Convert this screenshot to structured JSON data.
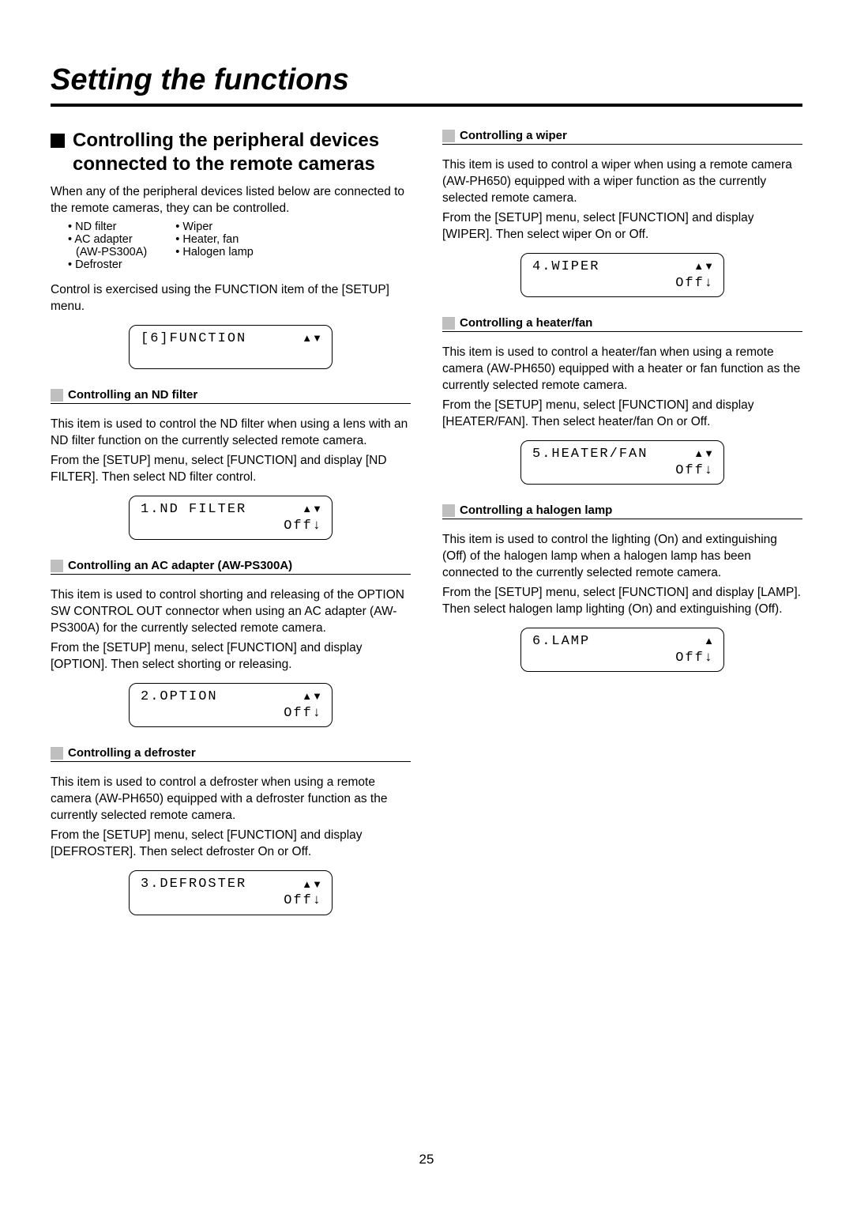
{
  "page": {
    "title": "Setting the functions",
    "page_number": "25"
  },
  "left": {
    "section_title": "Controlling the peripheral devices connected to the remote cameras",
    "intro": "When any of the peripheral devices listed below are connected to the remote cameras, they can be controlled.",
    "devices_col1": [
      "ND filter",
      "AC adapter",
      "(AW-PS300A)",
      "Defroster"
    ],
    "devices_col2": [
      "Wiper",
      "Heater, fan",
      "Halogen lamp"
    ],
    "control_note": "Control is exercised using the FUNCTION item of the [SETUP] menu.",
    "lcd_function_line1": "[6]FUNCTION",
    "lcd_function_arrow": "▲▼",
    "sections": [
      {
        "heading": "Controlling an ND filter",
        "body1": "This item is used to control the ND filter when using a lens with an ND filter function on the currently selected remote camera.",
        "body2": "From the [SETUP] menu, select [FUNCTION] and display [ND FILTER]. Then select ND filter control.",
        "lcd_line1": "1.ND FILTER",
        "lcd_arrow1": "▲▼",
        "lcd_line2": "Off",
        "lcd_arrow2": "↓"
      },
      {
        "heading": "Controlling an AC adapter (AW-PS300A)",
        "body1": "This item is used to control shorting and releasing of the OPTION SW CONTROL OUT connector when using an AC adapter (AW-PS300A) for the currently selected remote camera.",
        "body2": "From the [SETUP] menu, select [FUNCTION] and display [OPTION]. Then select shorting or releasing.",
        "lcd_line1": "2.OPTION",
        "lcd_arrow1": "▲▼",
        "lcd_line2": "Off",
        "lcd_arrow2": "↓"
      },
      {
        "heading": "Controlling a defroster",
        "body1": "This item is used to control a defroster when using a remote camera (AW-PH650) equipped with a defroster function as the currently selected remote camera.",
        "body2": "From the [SETUP] menu, select [FUNCTION] and display [DEFROSTER]. Then select defroster On or Off.",
        "lcd_line1": "3.DEFROSTER",
        "lcd_arrow1": "▲▼",
        "lcd_line2": "Off",
        "lcd_arrow2": "↓"
      }
    ]
  },
  "right": {
    "sections": [
      {
        "heading": "Controlling a wiper",
        "body1": "This item is used to control a wiper when using a remote camera (AW-PH650) equipped with a wiper function as the currently selected remote camera.",
        "body2": "From the [SETUP] menu, select [FUNCTION] and display [WIPER]. Then select wiper On or Off.",
        "lcd_line1": "4.WIPER",
        "lcd_arrow1": "▲▼",
        "lcd_line2": "Off",
        "lcd_arrow2": "↓"
      },
      {
        "heading": "Controlling a heater/fan",
        "body1": "This item is used to control a heater/fan when using a remote camera (AW-PH650) equipped with a heater or fan function as the currently selected remote camera.",
        "body2": "From the [SETUP] menu, select [FUNCTION] and display [HEATER/FAN]. Then select heater/fan On or Off.",
        "lcd_line1": "5.HEATER/FAN",
        "lcd_arrow1": "▲▼",
        "lcd_line2": "Off",
        "lcd_arrow2": "↓"
      },
      {
        "heading": "Controlling a halogen lamp",
        "body1": "This item is used to control the lighting (On) and extinguishing (Off) of the halogen lamp when a halogen lamp has been connected to the currently selected remote camera.",
        "body2": "From the [SETUP] menu, select [FUNCTION] and display [LAMP]. Then select halogen lamp lighting (On) and extinguishing (Off).",
        "lcd_line1": "6.LAMP",
        "lcd_arrow1": "▲",
        "lcd_line2": "Off",
        "lcd_arrow2": "↓"
      }
    ]
  }
}
